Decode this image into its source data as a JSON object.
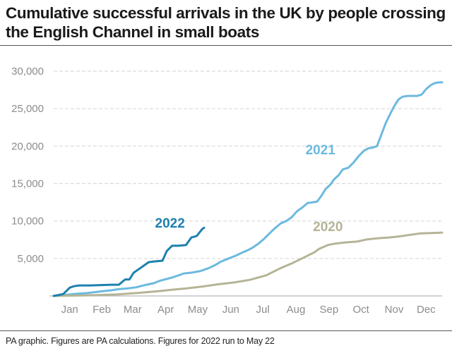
{
  "title": "Cumulative successful arrivals in the UK by people crossing the English Channel in small boats",
  "footnote": "PA graphic. Figures are PA calculations. Figures for 2022 run to May 22",
  "chart_data": {
    "type": "line",
    "title": "Cumulative successful arrivals in the UK by people crossing the English Channel in small boats",
    "xlabel": "",
    "ylabel": "",
    "x_unit": "day of year",
    "xlim": [
      1,
      365
    ],
    "ylim": [
      0,
      30000
    ],
    "grid": true,
    "legend": "direct labels",
    "x_ticks": [
      {
        "label": "Jan",
        "day": 16
      },
      {
        "label": "Feb",
        "day": 46
      },
      {
        "label": "Mar",
        "day": 75
      },
      {
        "label": "Apr",
        "day": 106
      },
      {
        "label": "May",
        "day": 136
      },
      {
        "label": "Jun",
        "day": 167
      },
      {
        "label": "Jul",
        "day": 197
      },
      {
        "label": "Aug",
        "day": 228
      },
      {
        "label": "Sep",
        "day": 259
      },
      {
        "label": "Oct",
        "day": 289
      },
      {
        "label": "Nov",
        "day": 320
      },
      {
        "label": "Dec",
        "day": 350
      }
    ],
    "y_ticks": [
      0,
      5000,
      10000,
      15000,
      20000,
      25000,
      30000
    ],
    "y_tick_labels": [
      "",
      "5,000",
      "10,000",
      "15,000",
      "20,000",
      "25,000",
      "30,000"
    ],
    "series": [
      {
        "name": "2021",
        "color": "#6cb9df",
        "x": [
          1,
          10,
          20,
          32,
          45,
          55,
          62,
          70,
          78,
          88,
          95,
          100,
          108,
          115,
          123,
          130,
          138,
          146,
          152,
          158,
          165,
          172,
          178,
          183,
          188,
          193,
          198,
          203,
          208,
          214,
          219,
          224,
          229,
          234,
          239,
          244,
          248,
          252,
          256,
          260,
          264,
          268,
          272,
          277,
          282,
          287,
          292,
          296,
          300,
          304,
          308,
          312,
          316,
          320,
          324,
          328,
          333,
          338,
          342,
          346,
          350,
          354,
          358,
          362,
          365
        ],
        "values": [
          0,
          100,
          250,
          380,
          600,
          750,
          900,
          1000,
          1150,
          1500,
          1700,
          2000,
          2300,
          2600,
          3000,
          3100,
          3300,
          3700,
          4100,
          4600,
          5000,
          5400,
          5800,
          6100,
          6500,
          7000,
          7600,
          8300,
          9000,
          9700,
          10000,
          10500,
          11300,
          11800,
          12400,
          12500,
          12600,
          13400,
          14300,
          14800,
          15600,
          16100,
          16900,
          17100,
          17800,
          18700,
          19400,
          19700,
          19800,
          20000,
          21500,
          23000,
          24200,
          25300,
          26200,
          26600,
          26700,
          26700,
          26700,
          26900,
          27600,
          28100,
          28400,
          28500,
          28500
        ]
      },
      {
        "name": "2020",
        "color": "#b5b496",
        "x": [
          1,
          20,
          40,
          60,
          80,
          100,
          110,
          125,
          140,
          155,
          170,
          185,
          200,
          215,
          225,
          235,
          245,
          250,
          258,
          265,
          275,
          285,
          295,
          305,
          315,
          325,
          335,
          345,
          355,
          365
        ],
        "values": [
          0,
          50,
          100,
          200,
          400,
          650,
          800,
          1000,
          1250,
          1550,
          1800,
          2150,
          2750,
          3800,
          4400,
          5100,
          5800,
          6300,
          6800,
          7000,
          7150,
          7250,
          7550,
          7700,
          7800,
          7950,
          8150,
          8350,
          8400,
          8450
        ]
      },
      {
        "name": "2022",
        "color": "#1e80ae",
        "x": [
          1,
          5,
          10,
          16,
          20,
          25,
          35,
          45,
          55,
          62,
          68,
          72,
          76,
          80,
          85,
          90,
          95,
          103,
          107,
          112,
          118,
          125,
          130,
          135,
          140,
          142
        ],
        "values": [
          0,
          100,
          250,
          1100,
          1300,
          1400,
          1400,
          1450,
          1500,
          1500,
          2200,
          2200,
          3100,
          3500,
          4000,
          4500,
          4600,
          4700,
          6000,
          6700,
          6700,
          6800,
          7800,
          8000,
          8900,
          9100
        ]
      }
    ],
    "annotations": [
      {
        "text": "2022",
        "series": "2022"
      },
      {
        "text": "2021",
        "series": "2021"
      },
      {
        "text": "2020",
        "series": "2020"
      }
    ]
  }
}
